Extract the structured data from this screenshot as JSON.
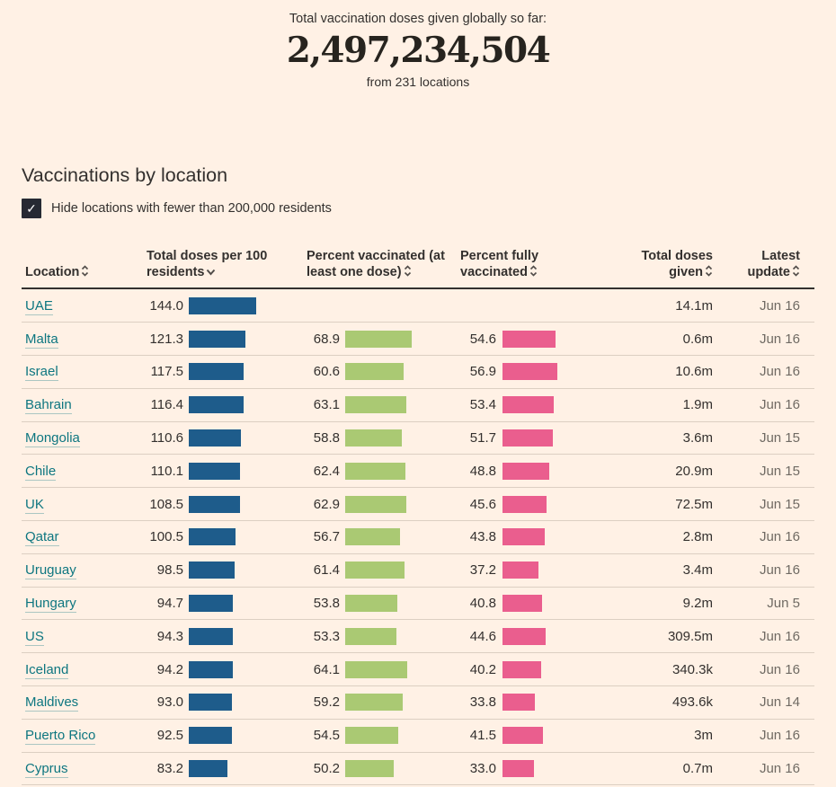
{
  "summary": {
    "label": "Total vaccination doses given globally so far:",
    "total": "2,497,234,504",
    "sublabel": "from 231 locations"
  },
  "section": {
    "title": "Vaccinations by location",
    "filter_label": "Hide locations with fewer than 200,000 residents",
    "filter_checked": true
  },
  "icons": {
    "checkmark": "✓"
  },
  "colors": {
    "background": "#fff1e5",
    "doses_bar": "#1e5c8b",
    "one_dose_bar": "#aac973",
    "fully_bar": "#ea5e8e",
    "link_teal": "#0d7680",
    "muted_text": "#6f6a63"
  },
  "table": {
    "columns": [
      {
        "label": "Location",
        "sort": "sortable"
      },
      {
        "label": "Total doses per 100 residents",
        "sort": "desc"
      },
      {
        "label": "Percent vaccinated (at least one dose)",
        "sort": "sortable"
      },
      {
        "label": "Percent fully vaccinated",
        "sort": "sortable"
      },
      {
        "label": "Total doses given",
        "sort": "sortable"
      },
      {
        "label": "Latest update",
        "sort": "sortable"
      }
    ],
    "rows": [
      {
        "location": "UAE",
        "doses_per_100": "144.0",
        "pct_one_dose": "",
        "pct_fully": "",
        "total_given": "14.1m",
        "updated": "Jun 16"
      },
      {
        "location": "Malta",
        "doses_per_100": "121.3",
        "pct_one_dose": "68.9",
        "pct_fully": "54.6",
        "total_given": "0.6m",
        "updated": "Jun 16"
      },
      {
        "location": "Israel",
        "doses_per_100": "117.5",
        "pct_one_dose": "60.6",
        "pct_fully": "56.9",
        "total_given": "10.6m",
        "updated": "Jun 16"
      },
      {
        "location": "Bahrain",
        "doses_per_100": "116.4",
        "pct_one_dose": "63.1",
        "pct_fully": "53.4",
        "total_given": "1.9m",
        "updated": "Jun 16"
      },
      {
        "location": "Mongolia",
        "doses_per_100": "110.6",
        "pct_one_dose": "58.8",
        "pct_fully": "51.7",
        "total_given": "3.6m",
        "updated": "Jun 15"
      },
      {
        "location": "Chile",
        "doses_per_100": "110.1",
        "pct_one_dose": "62.4",
        "pct_fully": "48.8",
        "total_given": "20.9m",
        "updated": "Jun 15"
      },
      {
        "location": "UK",
        "doses_per_100": "108.5",
        "pct_one_dose": "62.9",
        "pct_fully": "45.6",
        "total_given": "72.5m",
        "updated": "Jun 15"
      },
      {
        "location": "Qatar",
        "doses_per_100": "100.5",
        "pct_one_dose": "56.7",
        "pct_fully": "43.8",
        "total_given": "2.8m",
        "updated": "Jun 16"
      },
      {
        "location": "Uruguay",
        "doses_per_100": "98.5",
        "pct_one_dose": "61.4",
        "pct_fully": "37.2",
        "total_given": "3.4m",
        "updated": "Jun 16"
      },
      {
        "location": "Hungary",
        "doses_per_100": "94.7",
        "pct_one_dose": "53.8",
        "pct_fully": "40.8",
        "total_given": "9.2m",
        "updated": "Jun 5"
      },
      {
        "location": "US",
        "doses_per_100": "94.3",
        "pct_one_dose": "53.3",
        "pct_fully": "44.6",
        "total_given": "309.5m",
        "updated": "Jun 16"
      },
      {
        "location": "Iceland",
        "doses_per_100": "94.2",
        "pct_one_dose": "64.1",
        "pct_fully": "40.2",
        "total_given": "340.3k",
        "updated": "Jun 16"
      },
      {
        "location": "Maldives",
        "doses_per_100": "93.0",
        "pct_one_dose": "59.2",
        "pct_fully": "33.8",
        "total_given": "493.6k",
        "updated": "Jun 14"
      },
      {
        "location": "Puerto Rico",
        "doses_per_100": "92.5",
        "pct_one_dose": "54.5",
        "pct_fully": "41.5",
        "total_given": "3m",
        "updated": "Jun 16"
      },
      {
        "location": "Cyprus",
        "doses_per_100": "83.2",
        "pct_one_dose": "50.2",
        "pct_fully": "33.0",
        "total_given": "0.7m",
        "updated": "Jun 16"
      }
    ]
  }
}
